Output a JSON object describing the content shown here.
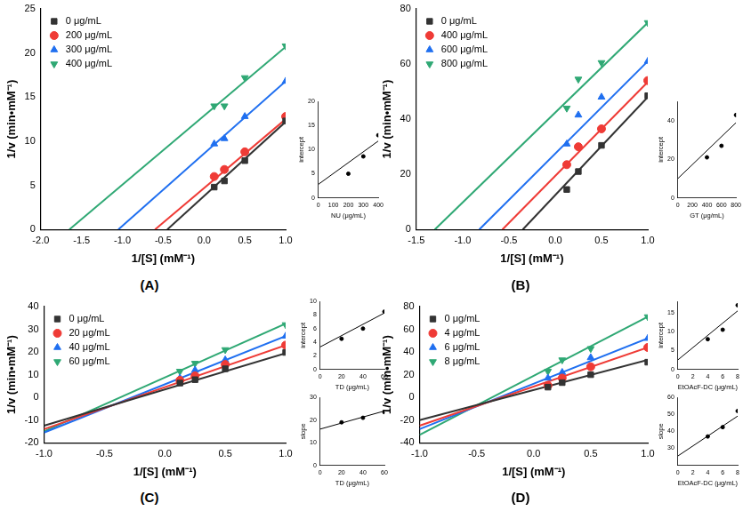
{
  "panel_labels": [
    "(A)",
    "(B)",
    "(C)",
    "(D)"
  ],
  "chart_data": [
    {
      "type": "scatter",
      "xlabel": "1/[S] (mM⁻¹)",
      "ylabel": "1/v (min•mM⁻¹)",
      "xlim": [
        -2,
        1
      ],
      "xticks": [
        {
          "value": -2,
          "label": "-2.0"
        },
        {
          "value": -1.5,
          "label": "-1.5"
        },
        {
          "value": -1,
          "label": "-1.0"
        },
        {
          "value": -0.5,
          "label": "-0.5"
        },
        {
          "value": 0,
          "label": "0.0"
        },
        {
          "value": 0.5,
          "label": "0.5"
        },
        {
          "value": 1,
          "label": "1.0"
        }
      ],
      "ylim": [
        0,
        25
      ],
      "yticks": [
        0,
        5,
        10,
        15,
        20,
        25
      ],
      "grid": false,
      "legend": "upper left",
      "series": [
        {
          "name": "0 μg/mL",
          "color": "#333333",
          "marker": "square",
          "x": [
            0.125,
            0.25,
            0.5,
            1
          ],
          "values": [
            4.8,
            5.5,
            7.8,
            12.3
          ],
          "fit_x": [
            -0.45,
            1
          ],
          "fit_y": [
            0,
            12.2
          ]
        },
        {
          "name": "200 μg/mL",
          "color": "#ef3b36",
          "marker": "circle",
          "x": [
            0.125,
            0.25,
            0.5,
            1
          ],
          "values": [
            6.0,
            6.8,
            8.8,
            12.8
          ],
          "fit_x": [
            -0.6,
            1
          ],
          "fit_y": [
            0,
            12.5
          ]
        },
        {
          "name": "300 μg/mL",
          "color": "#1f6ff0",
          "marker": "triangle",
          "x": [
            0.125,
            0.25,
            0.5,
            1
          ],
          "values": [
            9.7,
            10.3,
            12.8,
            16.8
          ],
          "fit_x": [
            -1.05,
            1
          ],
          "fit_y": [
            0,
            16.8
          ]
        },
        {
          "name": "400 μg/mL",
          "color": "#2fa874",
          "marker": "triangle_down",
          "x": [
            0.125,
            0.25,
            0.5,
            1
          ],
          "values": [
            14.0,
            14.0,
            17.2,
            20.8
          ],
          "fit_x": [
            -1.65,
            1
          ],
          "fit_y": [
            0,
            20.7
          ]
        }
      ]
    },
    {
      "type": "scatter",
      "xlabel": "NU (μg/mL)",
      "ylabel": "intercept",
      "xlim": [
        0,
        400
      ],
      "xticks": [
        0,
        100,
        200,
        300,
        400
      ],
      "ylim": [
        0,
        20
      ],
      "yticks": [
        0,
        5,
        10,
        15,
        20
      ],
      "grid": false,
      "series": [
        {
          "color": "#000000",
          "marker": "circle",
          "x": [
            200,
            300,
            400
          ],
          "values": [
            5.0,
            8.6,
            13.0
          ],
          "fit_x": [
            0,
            400
          ],
          "fit_y": [
            2.8,
            11.8
          ]
        }
      ]
    },
    {
      "type": "scatter",
      "xlabel": "1/[S] (mM⁻¹)",
      "ylabel": "1/v (min•mM⁻¹)",
      "xlim": [
        -1.5,
        1
      ],
      "xticks": [
        {
          "value": -1.5,
          "label": "-1.5"
        },
        {
          "value": -1,
          "label": "-1.0"
        },
        {
          "value": -0.5,
          "label": "-0.5"
        },
        {
          "value": 0,
          "label": "0.0"
        },
        {
          "value": 0.5,
          "label": "0.5"
        },
        {
          "value": 1,
          "label": "1.0"
        }
      ],
      "ylim": [
        0,
        80
      ],
      "yticks": [
        0,
        20,
        40,
        60,
        80
      ],
      "grid": false,
      "legend": "upper left",
      "series": [
        {
          "name": "0 μg/mL",
          "color": "#333333",
          "marker": "square",
          "x": [
            0.125,
            0.25,
            0.5,
            1
          ],
          "values": [
            14.5,
            21.0,
            30.5,
            48.5
          ],
          "fit_x": [
            -0.35,
            1
          ],
          "fit_y": [
            0,
            48.0
          ]
        },
        {
          "name": "400 μg/mL",
          "color": "#ef3b36",
          "marker": "circle",
          "x": [
            0.125,
            0.25,
            0.5,
            1
          ],
          "values": [
            23.5,
            30.0,
            36.5,
            54.0
          ],
          "fit_x": [
            -0.57,
            1
          ],
          "fit_y": [
            0,
            53.5
          ]
        },
        {
          "name": "600 μg/mL",
          "color": "#1f6ff0",
          "marker": "triangle",
          "x": [
            0.125,
            0.25,
            0.5,
            1
          ],
          "values": [
            31.0,
            41.5,
            48.0,
            61.0
          ],
          "fit_x": [
            -0.82,
            1
          ],
          "fit_y": [
            0,
            61.0
          ]
        },
        {
          "name": "800 μg/mL",
          "color": "#2fa874",
          "marker": "triangle_down",
          "x": [
            0.125,
            0.25,
            0.5,
            1
          ],
          "values": [
            44.0,
            54.5,
            60.5,
            75.0
          ],
          "fit_x": [
            -1.3,
            1
          ],
          "fit_y": [
            0,
            75.0
          ]
        }
      ]
    },
    {
      "type": "scatter",
      "xlabel": "GT (μg/mL)",
      "ylabel": "intercept",
      "xlim": [
        0,
        800
      ],
      "xticks": [
        0,
        200,
        400,
        600,
        800
      ],
      "ylim": [
        0,
        50
      ],
      "yticks": [
        0,
        20,
        40
      ],
      "grid": false,
      "series": [
        {
          "color": "#000000",
          "marker": "circle",
          "x": [
            400,
            600,
            800
          ],
          "values": [
            21.0,
            27.0,
            43.0
          ],
          "fit_x": [
            0,
            800
          ],
          "fit_y": [
            10.0,
            39.0
          ]
        }
      ]
    },
    {
      "type": "scatter",
      "xlabel": "1/[S] (mM⁻¹)",
      "ylabel": "1/v (min•mM⁻¹)",
      "xlim": [
        -1,
        1
      ],
      "xticks": [
        {
          "value": -1,
          "label": "-1.0"
        },
        {
          "value": -0.5,
          "label": "-0.5"
        },
        {
          "value": 0,
          "label": "0.0"
        },
        {
          "value": 0.5,
          "label": "0.5"
        },
        {
          "value": 1,
          "label": "1.0"
        }
      ],
      "ylim": [
        -20,
        40
      ],
      "yticks": [
        -20,
        -10,
        0,
        10,
        20,
        30,
        40
      ],
      "grid": false,
      "legend": "upper left",
      "series": [
        {
          "name": "0 μg/mL",
          "color": "#333333",
          "marker": "square",
          "x": [
            0.125,
            0.25,
            0.5,
            1
          ],
          "values": [
            6.3,
            7.8,
            12.6,
            19.8
          ],
          "fit_x": [
            -1,
            1
          ],
          "fit_y": [
            -12.5,
            19.5
          ]
        },
        {
          "name": "20 μg/mL",
          "color": "#ef3b36",
          "marker": "circle",
          "x": [
            0.125,
            0.25,
            0.5,
            1
          ],
          "values": [
            7.5,
            9.5,
            14.5,
            23.0
          ],
          "fit_x": [
            -1,
            1
          ],
          "fit_y": [
            -14.0,
            23.0
          ]
        },
        {
          "name": "40 μg/mL",
          "color": "#1f6ff0",
          "marker": "triangle",
          "x": [
            0.125,
            0.25,
            0.5,
            1
          ],
          "values": [
            8.5,
            12.0,
            16.5,
            27.0
          ],
          "fit_x": [
            -1,
            1
          ],
          "fit_y": [
            -15.5,
            27.0
          ]
        },
        {
          "name": "60 μg/mL",
          "color": "#2fa874",
          "marker": "triangle_down",
          "x": [
            0.125,
            0.25,
            0.5,
            1
          ],
          "values": [
            11.5,
            15.0,
            21.0,
            32.0
          ],
          "fit_x": [
            -1,
            1
          ],
          "fit_y": [
            -15.0,
            32.5
          ]
        }
      ]
    },
    {
      "type": "scatter",
      "xlabel": "TD (μg/mL)",
      "ylabel": "intercept",
      "xlim": [
        0,
        60
      ],
      "xticks": [
        0,
        20,
        40,
        60
      ],
      "ylim": [
        0,
        10
      ],
      "yticks": [
        0,
        2,
        4,
        6,
        8,
        10
      ],
      "grid": false,
      "series": [
        {
          "color": "#000000",
          "marker": "circle",
          "x": [
            20,
            40,
            60
          ],
          "values": [
            4.5,
            6.0,
            8.5
          ],
          "fit_x": [
            0,
            60
          ],
          "fit_y": [
            3.3,
            8.3
          ]
        }
      ]
    },
    {
      "type": "scatter",
      "xlabel": "TD (μg/mL)",
      "ylabel": "slope",
      "xlim": [
        0,
        60
      ],
      "xticks": [
        0,
        20,
        40,
        60
      ],
      "ylim": [
        0,
        30
      ],
      "yticks": [
        0,
        10,
        20,
        30
      ],
      "grid": false,
      "series": [
        {
          "color": "#000000",
          "marker": "circle",
          "x": [
            20,
            40,
            60
          ],
          "values": [
            19.0,
            21.0,
            23.5
          ],
          "fit_x": [
            0,
            60
          ],
          "fit_y": [
            16.0,
            24.0
          ]
        }
      ]
    },
    {
      "type": "scatter",
      "xlabel": "1/[S] (mM⁻¹)",
      "ylabel": "1/v (min•mM⁻¹)",
      "xlim": [
        -1,
        1
      ],
      "xticks": [
        {
          "value": -1,
          "label": "-1.0"
        },
        {
          "value": -0.5,
          "label": "-0.5"
        },
        {
          "value": 0,
          "label": "0.0"
        },
        {
          "value": 0.5,
          "label": "0.5"
        },
        {
          "value": 1,
          "label": "1.0"
        }
      ],
      "ylim": [
        -40,
        80
      ],
      "yticks": [
        -40,
        -20,
        0,
        20,
        40,
        60,
        80
      ],
      "grid": false,
      "legend": "upper left",
      "series": [
        {
          "name": "0 μg/mL",
          "color": "#333333",
          "marker": "square",
          "x": [
            0.125,
            0.25,
            0.5,
            1
          ],
          "values": [
            9.0,
            13.0,
            20.0,
            31.0
          ],
          "fit_x": [
            -1,
            1
          ],
          "fit_y": [
            -20.0,
            33.0
          ]
        },
        {
          "name": "4 μg/mL",
          "color": "#ef3b36",
          "marker": "circle",
          "x": [
            0.125,
            0.25,
            0.5,
            1
          ],
          "values": [
            10.5,
            17.0,
            27.0,
            44.0
          ],
          "fit_x": [
            -1,
            1
          ],
          "fit_y": [
            -25.0,
            44.0
          ]
        },
        {
          "name": "6 μg/mL",
          "color": "#1f6ff0",
          "marker": "triangle",
          "x": [
            0.125,
            0.25,
            0.5,
            1
          ],
          "values": [
            17.0,
            22.0,
            35.0,
            52.0
          ],
          "fit_x": [
            -1,
            1
          ],
          "fit_y": [
            -28.0,
            52.0
          ]
        },
        {
          "name": "8 μg/mL",
          "color": "#2fa874",
          "marker": "triangle_down",
          "x": [
            0.125,
            0.25,
            0.5,
            1
          ],
          "values": [
            23.0,
            33.0,
            43.0,
            71.0
          ],
          "fit_x": [
            -1,
            1
          ],
          "fit_y": [
            -33.0,
            71.0
          ]
        }
      ]
    },
    {
      "type": "scatter",
      "xlabel": "EtOAcF-DC (μg/mL)",
      "ylabel": "intercept",
      "xlim": [
        0,
        8
      ],
      "xticks": [
        0,
        2,
        4,
        6,
        8
      ],
      "ylim": [
        0,
        18
      ],
      "yticks": [
        0,
        5,
        10,
        15
      ],
      "grid": false,
      "series": [
        {
          "color": "#000000",
          "marker": "circle",
          "x": [
            4,
            6,
            8
          ],
          "values": [
            8.0,
            10.5,
            17.0
          ],
          "fit_x": [
            0,
            8
          ],
          "fit_y": [
            2.5,
            15.5
          ]
        }
      ]
    },
    {
      "type": "scatter",
      "xlabel": "EtOAcF-DC (μg/mL)",
      "ylabel": "slope",
      "xlim": [
        0,
        8
      ],
      "xticks": [
        0,
        2,
        4,
        6,
        8
      ],
      "ylim": [
        20,
        60
      ],
      "yticks": [
        30,
        40,
        50,
        60
      ],
      "grid": false,
      "series": [
        {
          "color": "#000000",
          "marker": "circle",
          "x": [
            4,
            6,
            8
          ],
          "values": [
            37.0,
            42.5,
            52.0
          ],
          "fit_x": [
            0,
            8
          ],
          "fit_y": [
            25.5,
            49.0
          ]
        }
      ]
    }
  ]
}
